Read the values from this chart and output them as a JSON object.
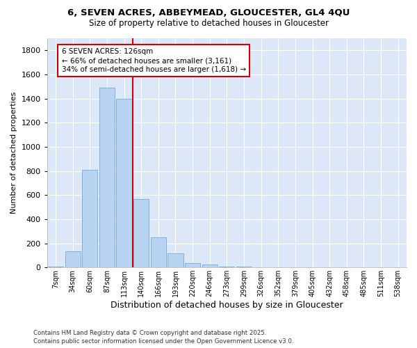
{
  "title_line1": "6, SEVEN ACRES, ABBEYMEAD, GLOUCESTER, GL4 4QU",
  "title_line2": "Size of property relative to detached houses in Gloucester",
  "xlabel": "Distribution of detached houses by size in Gloucester",
  "ylabel": "Number of detached properties",
  "categories": [
    "7sqm",
    "34sqm",
    "60sqm",
    "87sqm",
    "113sqm",
    "140sqm",
    "166sqm",
    "193sqm",
    "220sqm",
    "246sqm",
    "273sqm",
    "299sqm",
    "326sqm",
    "352sqm",
    "379sqm",
    "405sqm",
    "432sqm",
    "458sqm",
    "485sqm",
    "511sqm",
    "538sqm"
  ],
  "values": [
    5,
    135,
    810,
    1490,
    1400,
    570,
    250,
    115,
    35,
    22,
    5,
    10,
    0,
    0,
    0,
    0,
    0,
    0,
    0,
    0,
    0
  ],
  "bar_color": "#b8d4f0",
  "bar_edge_color": "#7fb0e0",
  "vline_color": "#cc0000",
  "annotation_text": "6 SEVEN ACRES: 126sqm\n← 66% of detached houses are smaller (3,161)\n34% of semi-detached houses are larger (1,618) →",
  "annotation_box_facecolor": "#ffffff",
  "annotation_box_edgecolor": "#cc0000",
  "ylim": [
    0,
    1900
  ],
  "yticks": [
    0,
    200,
    400,
    600,
    800,
    1000,
    1200,
    1400,
    1600,
    1800
  ],
  "plot_bg_color": "#dce8f8",
  "fig_bg_color": "#ffffff",
  "grid_color": "#ffffff",
  "footer": "Contains HM Land Registry data © Crown copyright and database right 2025.\nContains public sector information licensed under the Open Government Licence v3.0."
}
